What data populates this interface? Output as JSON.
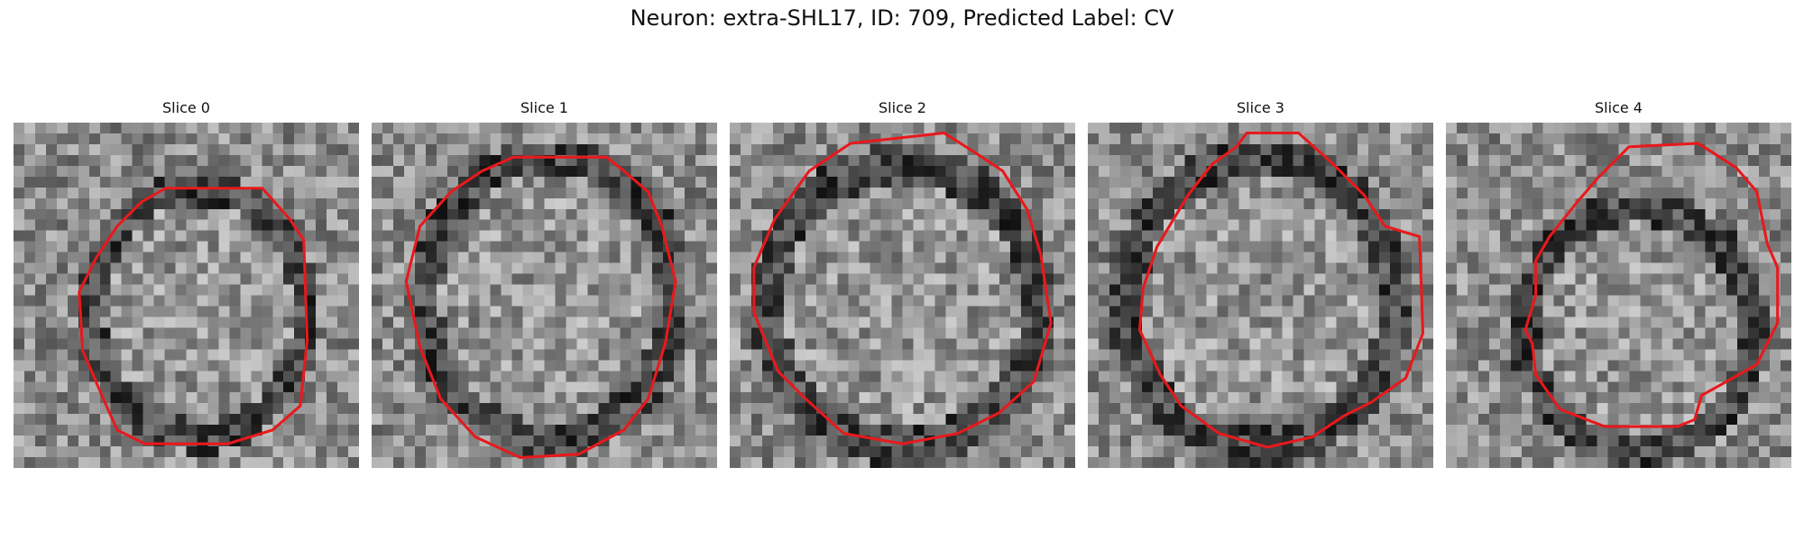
{
  "figure": {
    "title": "Neuron: extra-SHL17, ID: 709, Predicted Label: CV"
  },
  "outline_color": "#e8191c",
  "panels": [
    {
      "label": "Slice 0",
      "center": [
        0.535,
        0.55
      ],
      "radius": [
        0.32,
        0.37
      ],
      "outline": [
        [
          0.44,
          0.19
        ],
        [
          0.72,
          0.19
        ],
        [
          0.8,
          0.28
        ],
        [
          0.84,
          0.34
        ],
        [
          0.85,
          0.63
        ],
        [
          0.83,
          0.82
        ],
        [
          0.75,
          0.89
        ],
        [
          0.62,
          0.93
        ],
        [
          0.38,
          0.93
        ],
        [
          0.3,
          0.89
        ],
        [
          0.26,
          0.8
        ],
        [
          0.2,
          0.66
        ],
        [
          0.19,
          0.49
        ],
        [
          0.24,
          0.39
        ],
        [
          0.3,
          0.3
        ],
        [
          0.37,
          0.23
        ]
      ]
    },
    {
      "label": "Slice 1",
      "center": [
        0.515,
        0.51
      ],
      "radius": [
        0.37,
        0.42
      ],
      "outline": [
        [
          0.41,
          0.1
        ],
        [
          0.68,
          0.1
        ],
        [
          0.73,
          0.14
        ],
        [
          0.8,
          0.2
        ],
        [
          0.84,
          0.3
        ],
        [
          0.88,
          0.46
        ],
        [
          0.85,
          0.64
        ],
        [
          0.8,
          0.8
        ],
        [
          0.73,
          0.89
        ],
        [
          0.6,
          0.96
        ],
        [
          0.43,
          0.97
        ],
        [
          0.3,
          0.91
        ],
        [
          0.2,
          0.8
        ],
        [
          0.14,
          0.65
        ],
        [
          0.1,
          0.46
        ],
        [
          0.14,
          0.3
        ],
        [
          0.23,
          0.2
        ],
        [
          0.32,
          0.14
        ]
      ]
    },
    {
      "label": "Slice 2",
      "center": [
        0.5,
        0.53
      ],
      "radius": [
        0.4,
        0.42
      ],
      "outline": [
        [
          0.35,
          0.06
        ],
        [
          0.62,
          0.03
        ],
        [
          0.7,
          0.08
        ],
        [
          0.79,
          0.14
        ],
        [
          0.86,
          0.25
        ],
        [
          0.9,
          0.38
        ],
        [
          0.93,
          0.58
        ],
        [
          0.88,
          0.75
        ],
        [
          0.78,
          0.84
        ],
        [
          0.66,
          0.9
        ],
        [
          0.5,
          0.93
        ],
        [
          0.33,
          0.9
        ],
        [
          0.22,
          0.8
        ],
        [
          0.14,
          0.72
        ],
        [
          0.07,
          0.55
        ],
        [
          0.07,
          0.42
        ],
        [
          0.13,
          0.28
        ],
        [
          0.23,
          0.14
        ]
      ]
    },
    {
      "label": "Slice 3",
      "center": [
        0.5,
        0.52
      ],
      "radius": [
        0.4,
        0.43
      ],
      "outline": [
        [
          0.46,
          0.03
        ],
        [
          0.61,
          0.03
        ],
        [
          0.71,
          0.12
        ],
        [
          0.8,
          0.21
        ],
        [
          0.86,
          0.3
        ],
        [
          0.96,
          0.33
        ],
        [
          0.97,
          0.61
        ],
        [
          0.92,
          0.74
        ],
        [
          0.82,
          0.81
        ],
        [
          0.74,
          0.85
        ],
        [
          0.65,
          0.91
        ],
        [
          0.52,
          0.94
        ],
        [
          0.38,
          0.9
        ],
        [
          0.27,
          0.82
        ],
        [
          0.21,
          0.73
        ],
        [
          0.15,
          0.6
        ],
        [
          0.16,
          0.48
        ],
        [
          0.2,
          0.36
        ],
        [
          0.29,
          0.21
        ],
        [
          0.36,
          0.12
        ],
        [
          0.43,
          0.07
        ]
      ]
    },
    {
      "label": "Slice 4",
      "center": [
        0.56,
        0.6
      ],
      "radius": [
        0.34,
        0.36
      ],
      "outline": [
        [
          0.53,
          0.07
        ],
        [
          0.73,
          0.06
        ],
        [
          0.84,
          0.13
        ],
        [
          0.9,
          0.2
        ],
        [
          0.93,
          0.35
        ],
        [
          0.96,
          0.42
        ],
        [
          0.96,
          0.58
        ],
        [
          0.9,
          0.7
        ],
        [
          0.83,
          0.74
        ],
        [
          0.74,
          0.79
        ],
        [
          0.72,
          0.86
        ],
        [
          0.67,
          0.88
        ],
        [
          0.46,
          0.88
        ],
        [
          0.33,
          0.83
        ],
        [
          0.26,
          0.73
        ],
        [
          0.25,
          0.64
        ],
        [
          0.23,
          0.6
        ],
        [
          0.26,
          0.5
        ],
        [
          0.26,
          0.4
        ],
        [
          0.3,
          0.33
        ],
        [
          0.38,
          0.23
        ],
        [
          0.44,
          0.16
        ]
      ]
    }
  ]
}
